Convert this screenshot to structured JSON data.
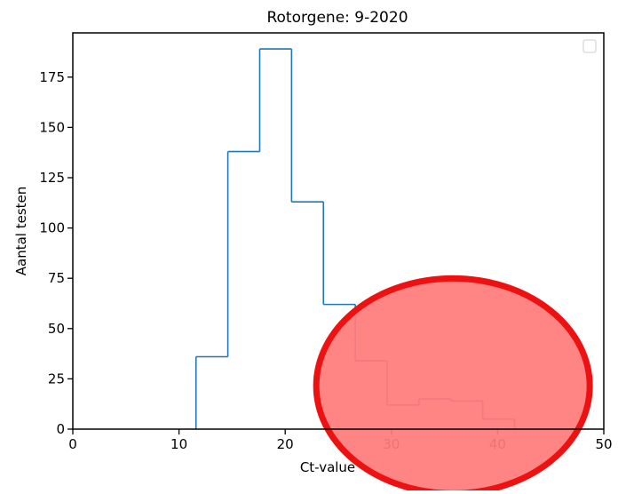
{
  "chart_data": {
    "type": "histogram",
    "title": "Rotorgene: 9-2020",
    "xlabel": "Ct-value",
    "ylabel": "Aantal testen",
    "xlim": [
      0,
      50
    ],
    "ylim": [
      0,
      197
    ],
    "x_ticks": [
      0,
      10,
      20,
      30,
      40,
      50
    ],
    "y_ticks": [
      0,
      25,
      50,
      75,
      100,
      125,
      150,
      175
    ],
    "grid": false,
    "legend": {
      "placement": "top-right",
      "entries": []
    },
    "bin_edges": [
      11.6,
      14.6,
      17.6,
      20.6,
      23.6,
      26.6,
      29.6,
      32.6,
      35.6,
      38.6,
      41.6
    ],
    "counts": [
      36,
      138,
      189,
      113,
      62,
      34,
      12,
      15,
      14,
      5
    ],
    "series_color": "#1f77b4",
    "annotations": [
      {
        "type": "ellipse-highlight",
        "fill": "#ff7b7b",
        "stroke": "#ee1111",
        "center": [
          35.8,
          21.5
        ]
      }
    ]
  }
}
